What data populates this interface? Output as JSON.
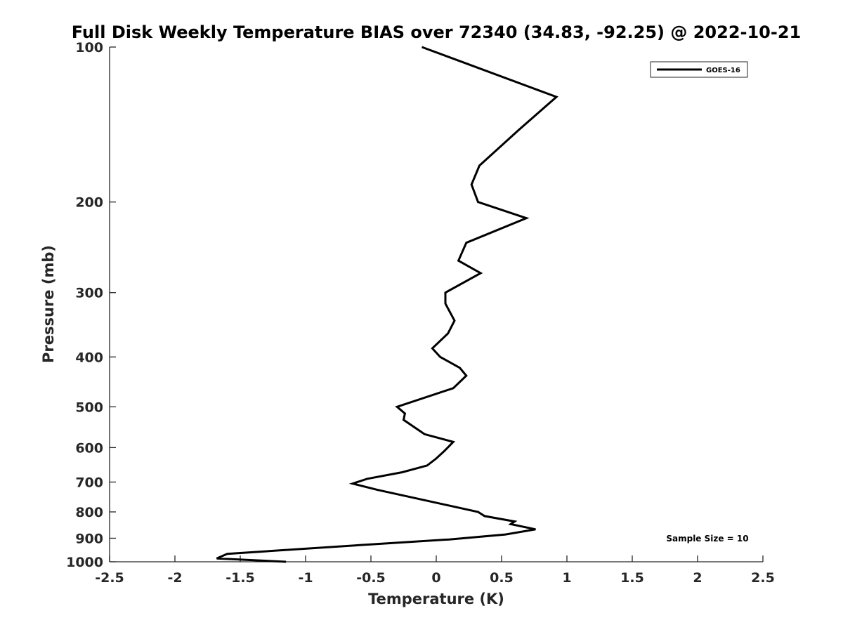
{
  "chart_data": {
    "type": "line",
    "title": "Full Disk Weekly Temperature BIAS over 72340 (34.83, -92.25) @ 2022-10-21",
    "xlabel": "Temperature (K)",
    "ylabel": "Pressure (mb)",
    "xlim": [
      -2.5,
      2.5
    ],
    "ylim": [
      100,
      1000
    ],
    "y_scale": "log",
    "y_reversed": true,
    "x_ticks": [
      "-2.5",
      "-2",
      "-1.5",
      "-1",
      "-0.5",
      "0",
      "0.5",
      "1",
      "1.5",
      "2",
      "2.5"
    ],
    "y_ticks": [
      "100",
      "200",
      "300",
      "400",
      "500",
      "600",
      "700",
      "800",
      "900",
      "1000"
    ],
    "grid": false,
    "legend_position": "top-right",
    "annotation": "Sample Size = 10",
    "series": [
      {
        "name": "GOES-16",
        "color": "#000000",
        "points": [
          {
            "x": -0.11,
            "y": 100
          },
          {
            "x": 0.92,
            "y": 125
          },
          {
            "x": 0.63,
            "y": 145
          },
          {
            "x": 0.33,
            "y": 170
          },
          {
            "x": 0.27,
            "y": 185
          },
          {
            "x": 0.32,
            "y": 200
          },
          {
            "x": 0.69,
            "y": 215
          },
          {
            "x": 0.23,
            "y": 240
          },
          {
            "x": 0.17,
            "y": 260
          },
          {
            "x": 0.34,
            "y": 275
          },
          {
            "x": 0.07,
            "y": 300
          },
          {
            "x": 0.07,
            "y": 315
          },
          {
            "x": 0.14,
            "y": 340
          },
          {
            "x": 0.09,
            "y": 360
          },
          {
            "x": -0.03,
            "y": 385
          },
          {
            "x": 0.03,
            "y": 400
          },
          {
            "x": 0.18,
            "y": 420
          },
          {
            "x": 0.23,
            "y": 435
          },
          {
            "x": 0.13,
            "y": 460
          },
          {
            "x": -0.3,
            "y": 500
          },
          {
            "x": -0.24,
            "y": 515
          },
          {
            "x": -0.25,
            "y": 530
          },
          {
            "x": -0.09,
            "y": 565
          },
          {
            "x": 0.13,
            "y": 585
          },
          {
            "x": 0.06,
            "y": 610
          },
          {
            "x": 0.0,
            "y": 630
          },
          {
            "x": -0.07,
            "y": 650
          },
          {
            "x": -0.26,
            "y": 670
          },
          {
            "x": -0.53,
            "y": 690
          },
          {
            "x": -0.64,
            "y": 705
          },
          {
            "x": -0.45,
            "y": 725
          },
          {
            "x": 0.32,
            "y": 800
          },
          {
            "x": 0.37,
            "y": 815
          },
          {
            "x": 0.6,
            "y": 835
          },
          {
            "x": 0.57,
            "y": 845
          },
          {
            "x": 0.76,
            "y": 865
          },
          {
            "x": 0.53,
            "y": 885
          },
          {
            "x": 0.1,
            "y": 905
          },
          {
            "x": -0.5,
            "y": 925
          },
          {
            "x": -1.6,
            "y": 965
          },
          {
            "x": -1.68,
            "y": 985
          },
          {
            "x": -1.15,
            "y": 1000
          }
        ]
      }
    ]
  }
}
